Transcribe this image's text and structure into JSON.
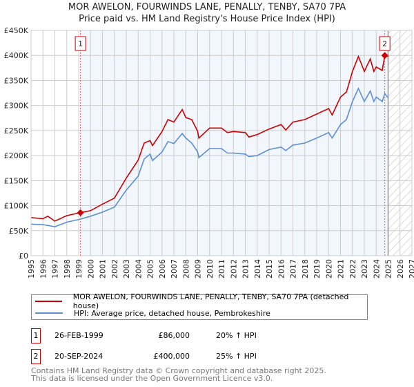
{
  "title": "MOR AWELON, FOURWINDS LANE, PENALLY, TENBY, SA70 7PA",
  "subtitle": "Price paid vs. HM Land Registry's House Price Index (HPI)",
  "chart_data": {
    "type": "line",
    "title": "MOR AWELON, FOURWINDS LANE, PENALLY, TENBY, SA70 7PA",
    "subtitle": "Price paid vs. HM Land Registry's House Price Index (HPI)",
    "xlim": [
      1995,
      2027
    ],
    "ylim": [
      0,
      450000
    ],
    "x_ticks": [
      "1995",
      "1996",
      "1997",
      "1998",
      "1999",
      "2000",
      "2001",
      "2002",
      "2003",
      "2004",
      "2005",
      "2006",
      "2007",
      "2008",
      "2009",
      "2010",
      "2011",
      "2012",
      "2013",
      "2014",
      "2015",
      "2016",
      "2017",
      "2018",
      "2019",
      "2020",
      "2021",
      "2022",
      "2023",
      "2024",
      "2025",
      "2026",
      "2027"
    ],
    "y_ticks": [
      {
        "value": 0,
        "label": "£0"
      },
      {
        "value": 50000,
        "label": "£50K"
      },
      {
        "value": 100000,
        "label": "£100K"
      },
      {
        "value": 150000,
        "label": "£150K"
      },
      {
        "value": 200000,
        "label": "£200K"
      },
      {
        "value": 250000,
        "label": "£250K"
      },
      {
        "value": 300000,
        "label": "£300K"
      },
      {
        "value": 350000,
        "label": "£350K"
      },
      {
        "value": 400000,
        "label": "£400K"
      },
      {
        "value": 450000,
        "label": "£450K"
      }
    ],
    "grid": true,
    "projection_start": 2025.0,
    "series": [
      {
        "name": "MOR AWELON, FOURWINDS LANE, PENALLY, TENBY, SA70 7PA (detached house)",
        "color": "#cc0000",
        "x": [
          1995,
          1996,
          1996.4,
          1997,
          1998,
          1999.15,
          2000,
          2001,
          2002,
          2003,
          2004,
          2004.5,
          2005,
          2005.2,
          2006,
          2006.5,
          2007,
          2007.7,
          2008,
          2008.5,
          2009,
          2009.1,
          2010,
          2011,
          2011.5,
          2012,
          2013,
          2013.3,
          2014,
          2015,
          2016,
          2016.4,
          2017,
          2018,
          2019,
          2020,
          2020.3,
          2021,
          2021.5,
          2022,
          2022.5,
          2023,
          2023.5,
          2023.8,
          2024,
          2024.5,
          2024.72,
          2025
        ],
        "y": [
          76000,
          74000,
          79000,
          69000,
          80000,
          86000,
          90000,
          103000,
          115000,
          155000,
          191000,
          225000,
          230000,
          220000,
          248000,
          272000,
          267000,
          292000,
          276000,
          272000,
          248000,
          235000,
          255000,
          255000,
          246000,
          248000,
          246000,
          237000,
          242000,
          253000,
          262000,
          251000,
          267000,
          272000,
          283000,
          294000,
          281000,
          317000,
          327000,
          368000,
          398000,
          368000,
          393000,
          368000,
          377000,
          370000,
          400000,
          398000
        ]
      },
      {
        "name": "HPI: Average price, detached house, Pembrokeshire",
        "color": "#5b8fd6",
        "x": [
          1995,
          1996,
          1997,
          1998,
          1999.15,
          2000,
          2001,
          2002,
          2003,
          2004,
          2004.5,
          2005,
          2005.2,
          2006,
          2006.5,
          2007,
          2007.7,
          2008,
          2008.5,
          2009,
          2009.1,
          2010,
          2011,
          2011.5,
          2012,
          2013,
          2013.3,
          2014,
          2015,
          2016,
          2016.4,
          2017,
          2018,
          2019,
          2020,
          2020.3,
          2021,
          2021.5,
          2022,
          2022.5,
          2023,
          2023.5,
          2023.8,
          2024,
          2024.5,
          2024.72,
          2025
        ],
        "y": [
          63000,
          62000,
          58000,
          67000,
          73000,
          79000,
          87000,
          97000,
          131000,
          159000,
          193000,
          203000,
          190000,
          207000,
          228000,
          224000,
          244000,
          235000,
          225000,
          207000,
          196000,
          214000,
          214000,
          205000,
          205000,
          203000,
          198000,
          200000,
          212000,
          217000,
          210000,
          221000,
          225000,
          235000,
          246000,
          235000,
          262000,
          272000,
          308000,
          334000,
          308000,
          329000,
          308000,
          317000,
          308000,
          324000,
          315000
        ]
      }
    ],
    "annotations": [
      {
        "label": "1",
        "x": 1999.15,
        "y": 86000
      },
      {
        "label": "2",
        "x": 2024.72,
        "y": 400000
      }
    ]
  },
  "legend": [
    {
      "label": "MOR AWELON, FOURWINDS LANE, PENALLY, TENBY, SA70 7PA (detached house)",
      "color": "#cc0000"
    },
    {
      "label": "HPI: Average price, detached house, Pembrokeshire",
      "color": "#5b8fd6"
    }
  ],
  "sales": [
    {
      "num": "1",
      "date": "26-FEB-1999",
      "price": "£86,000",
      "hpi": "20% ↑ HPI"
    },
    {
      "num": "2",
      "date": "20-SEP-2024",
      "price": "£400,000",
      "hpi": "25% ↑ HPI"
    }
  ],
  "footer": {
    "line1": "Contains HM Land Registry data © Crown copyright and database right 2025.",
    "line2": "This data is licensed under the Open Government Licence v3.0."
  }
}
